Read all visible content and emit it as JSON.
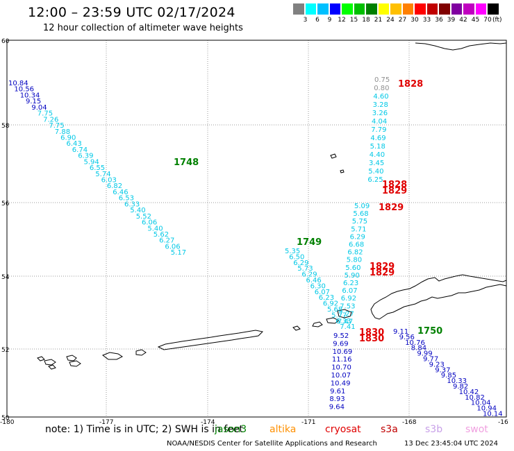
{
  "header": {
    "title": "12:00 – 23:59 UTC 02/17/2024",
    "subtitle": "12 hour collection of altimeter wave heights"
  },
  "legend": {
    "colors": [
      "#808080",
      "#00ffff",
      "#00c0ff",
      "#0000ff",
      "#00ff00",
      "#00c000",
      "#008000",
      "#ffff00",
      "#ffc000",
      "#ff8000",
      "#ff0000",
      "#c00000",
      "#800000",
      "#8000a0",
      "#c000c0",
      "#ff00ff",
      "#000000"
    ],
    "labels": [
      "3",
      "6",
      "9",
      "12",
      "15",
      "18",
      "21",
      "24",
      "27",
      "30",
      "33",
      "36",
      "39",
      "42",
      "45",
      "70"
    ],
    "unit": "(ft)"
  },
  "axes": {
    "lat_labels": [
      "60",
      "58",
      "56",
      "54",
      "52",
      "50"
    ],
    "lon_labels": [
      "-180",
      "-177",
      "-174",
      "-171",
      "-168",
      "-16"
    ]
  },
  "tracks": [
    {
      "name": "track-1748",
      "time_label": "1748",
      "time_color": "#008000",
      "points": [
        {
          "v": "10.84",
          "c": "#0000c0"
        },
        {
          "v": "10.56",
          "c": "#0000c0"
        },
        {
          "v": "10.34",
          "c": "#0000c0"
        },
        {
          "v": "9.15",
          "c": "#0000c0"
        },
        {
          "v": "9.04",
          "c": "#0000c0"
        },
        {
          "v": "7.75",
          "c": "#00c8e6"
        },
        {
          "v": "7.26",
          "c": "#00c8e6"
        },
        {
          "v": "7.75",
          "c": "#00c8e6"
        },
        {
          "v": "7.88",
          "c": "#00c8e6"
        },
        {
          "v": "6.90",
          "c": "#00c8e6"
        },
        {
          "v": "6.43",
          "c": "#00c8e6"
        },
        {
          "v": "6.74",
          "c": "#00c8e6"
        },
        {
          "v": "6.39",
          "c": "#00c8e6"
        },
        {
          "v": "5.94",
          "c": "#00c8e6"
        },
        {
          "v": "6.55",
          "c": "#00c8e6"
        },
        {
          "v": "5.74",
          "c": "#00c8e6"
        },
        {
          "v": "6.03",
          "c": "#00c8e6"
        },
        {
          "v": "6.82",
          "c": "#00c8e6"
        },
        {
          "v": "6.46",
          "c": "#00c8e6"
        },
        {
          "v": "6.53",
          "c": "#00c8e6"
        },
        {
          "v": "6.33",
          "c": "#00c8e6"
        },
        {
          "v": "5.40",
          "c": "#00c8e6"
        },
        {
          "v": "5.52",
          "c": "#00c8e6"
        },
        {
          "v": "6.06",
          "c": "#00c8e6"
        },
        {
          "v": "5.40",
          "c": "#00c8e6"
        },
        {
          "v": "5.62",
          "c": "#00c8e6"
        },
        {
          "v": "6.27",
          "c": "#00c8e6"
        },
        {
          "v": "6.06",
          "c": "#00c8e6"
        },
        {
          "v": "5.17",
          "c": "#00c8e6"
        }
      ]
    },
    {
      "name": "track-1749",
      "time_label": "1749",
      "time_color": "#008000",
      "points": [
        {
          "v": "5.35",
          "c": "#00c8e6"
        },
        {
          "v": "6.50",
          "c": "#00c8e6"
        },
        {
          "v": "6.29",
          "c": "#00c8e6"
        },
        {
          "v": "5.73",
          "c": "#00c8e6"
        },
        {
          "v": "6.29",
          "c": "#00c8e6"
        },
        {
          "v": "6.46",
          "c": "#00c8e6"
        },
        {
          "v": "6.30",
          "c": "#00c8e6"
        },
        {
          "v": "6.07",
          "c": "#00c8e6"
        },
        {
          "v": "6.23",
          "c": "#00c8e6"
        },
        {
          "v": "6.92",
          "c": "#00c8e6"
        },
        {
          "v": "5.68",
          "c": "#00c8e6"
        },
        {
          "v": "5.77",
          "c": "#00c8e6"
        },
        {
          "v": "6.33",
          "c": "#00c8e6"
        },
        {
          "v": "7.41",
          "c": "#00c8e6"
        }
      ]
    },
    {
      "name": "track-1750",
      "time_label": "1750",
      "time_color": "#008000",
      "points": [
        {
          "v": "9.11",
          "c": "#0000c0"
        },
        {
          "v": "9.56",
          "c": "#0000c0"
        },
        {
          "v": "10.76",
          "c": "#0000c0"
        },
        {
          "v": "8.84",
          "c": "#0000c0"
        },
        {
          "v": "9.99",
          "c": "#0000c0"
        },
        {
          "v": "9.77",
          "c": "#0000c0"
        },
        {
          "v": "9.23",
          "c": "#0000c0"
        },
        {
          "v": "9.37",
          "c": "#0000c0"
        },
        {
          "v": "9.85",
          "c": "#0000c0"
        },
        {
          "v": "10.33",
          "c": "#0000c0"
        },
        {
          "v": "9.82",
          "c": "#0000c0"
        },
        {
          "v": "10.42",
          "c": "#0000c0"
        },
        {
          "v": "10.82",
          "c": "#0000c0"
        },
        {
          "v": "10.04",
          "c": "#0000c0"
        },
        {
          "v": "10.94",
          "c": "#0000c0"
        },
        {
          "v": "10.14",
          "c": "#0000c0"
        }
      ]
    },
    {
      "name": "track-1828-top",
      "time_label": "1828",
      "time_color": "#e00000",
      "points": [
        {
          "v": "0.75",
          "c": "#909090"
        },
        {
          "v": "0.80",
          "c": "#909090"
        },
        {
          "v": "4.60",
          "c": "#00c8e6"
        },
        {
          "v": "3.28",
          "c": "#00c8e6"
        },
        {
          "v": "3.26",
          "c": "#00c8e6"
        },
        {
          "v": "4.04",
          "c": "#00c8e6"
        },
        {
          "v": "7.79",
          "c": "#00c8e6"
        },
        {
          "v": "4.69",
          "c": "#00c8e6"
        },
        {
          "v": "5.18",
          "c": "#00c8e6"
        },
        {
          "v": "4.40",
          "c": "#00c8e6"
        },
        {
          "v": "3.45",
          "c": "#00c8e6"
        },
        {
          "v": "5.40",
          "c": "#00c8e6"
        },
        {
          "v": "6.25",
          "c": "#00c8e6"
        }
      ]
    },
    {
      "name": "track-1829",
      "time_label": "1829",
      "time_color": "#e00000",
      "points": [
        {
          "v": "5.09",
          "c": "#00c8e6"
        },
        {
          "v": "5.68",
          "c": "#00c8e6"
        },
        {
          "v": "5.75",
          "c": "#00c8e6"
        },
        {
          "v": "5.71",
          "c": "#00c8e6"
        },
        {
          "v": "6.29",
          "c": "#00c8e6"
        },
        {
          "v": "6.68",
          "c": "#00c8e6"
        },
        {
          "v": "6.82",
          "c": "#00c8e6"
        },
        {
          "v": "5.80",
          "c": "#00c8e6"
        },
        {
          "v": "5.60",
          "c": "#00c8e6"
        },
        {
          "v": "5.90",
          "c": "#00c8e6"
        },
        {
          "v": "6.23",
          "c": "#00c8e6"
        },
        {
          "v": "6.07",
          "c": "#00c8e6"
        },
        {
          "v": "6.92",
          "c": "#00c8e6"
        },
        {
          "v": "7.53",
          "c": "#00c8e6"
        },
        {
          "v": "7.27",
          "c": "#00c8e6"
        },
        {
          "v": "7.47",
          "c": "#00c8e6"
        }
      ]
    },
    {
      "name": "track-1830",
      "time_label": "1830",
      "time_color": "#e00000",
      "points": [
        {
          "v": "9.52",
          "c": "#0000c0"
        },
        {
          "v": "9.69",
          "c": "#0000c0"
        },
        {
          "v": "10.69",
          "c": "#0000c0"
        },
        {
          "v": "11.16",
          "c": "#0000c0"
        },
        {
          "v": "10.70",
          "c": "#0000c0"
        },
        {
          "v": "10.07",
          "c": "#0000c0"
        },
        {
          "v": "10.49",
          "c": "#0000c0"
        },
        {
          "v": "9.61",
          "c": "#0000c0"
        },
        {
          "v": "8.93",
          "c": "#0000c0"
        },
        {
          "v": "9.64",
          "c": "#0000c0"
        }
      ]
    }
  ],
  "extra_time_labels": [
    {
      "name": "time-label-1828-b",
      "text": "1828",
      "color": "#e00000"
    },
    {
      "name": "time-label-1829-a",
      "text": "1829",
      "color": "#e00000"
    },
    {
      "name": "time-label-1829-c",
      "text": "1829",
      "color": "#e00000"
    },
    {
      "name": "time-label-1829-d",
      "text": "1829",
      "color": "#e00000"
    },
    {
      "name": "time-label-1830-b",
      "text": "1830",
      "color": "#e00000"
    }
  ],
  "footer": {
    "note": "note:  1) Time is in UTC; 2) SWH is in feet",
    "satellites": [
      {
        "name": "jason3",
        "label": "jason3",
        "color": "#008000"
      },
      {
        "name": "altika",
        "label": "altika",
        "color": "#ff9000"
      },
      {
        "name": "cryosat",
        "label": "cryosat",
        "color": "#e00000"
      },
      {
        "name": "s3a",
        "label": "s3a",
        "color": "#c00000"
      },
      {
        "name": "s3b",
        "label": "s3b",
        "color": "#c8a0e8"
      },
      {
        "name": "swot",
        "label": "swot",
        "color": "#f0a0e0"
      }
    ],
    "credit": "NOAA/NESDIS Center for Satellite Applications and Research",
    "generated": "13 Dec 23:45:04 UTC 2024"
  }
}
